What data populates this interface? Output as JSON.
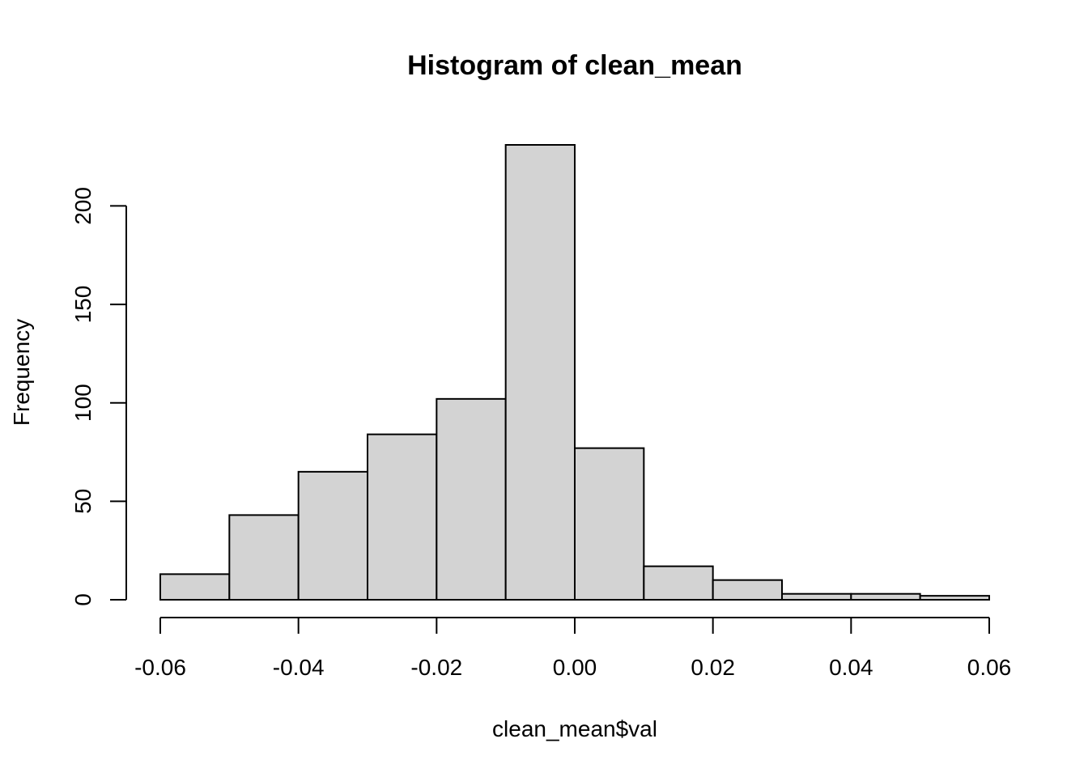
{
  "chart_data": {
    "type": "bar",
    "title": "Histogram of clean_mean",
    "xlabel": "clean_mean$val",
    "ylabel": "Frequency",
    "bin_edges": [
      -0.06,
      -0.05,
      -0.04,
      -0.03,
      -0.02,
      -0.01,
      0.0,
      0.01,
      0.02,
      0.03,
      0.04,
      0.05,
      0.06
    ],
    "values": [
      13,
      43,
      65,
      84,
      102,
      231,
      77,
      17,
      10,
      3,
      3,
      2
    ],
    "xlim": [
      -0.06,
      0.06
    ],
    "ylim": [
      0,
      231
    ],
    "x_ticks": [
      -0.06,
      -0.04,
      -0.02,
      0.0,
      0.02,
      0.04,
      0.06
    ],
    "x_tick_labels": [
      "-0.06",
      "-0.04",
      "-0.02",
      "0.00",
      "0.02",
      "0.04",
      "0.06"
    ],
    "y_ticks": [
      0,
      50,
      100,
      150,
      200
    ],
    "y_tick_labels": [
      "0",
      "50",
      "100",
      "150",
      "200"
    ],
    "grid": false,
    "colors": {
      "bar_fill": "#d3d3d3",
      "bar_stroke": "#000000"
    }
  }
}
